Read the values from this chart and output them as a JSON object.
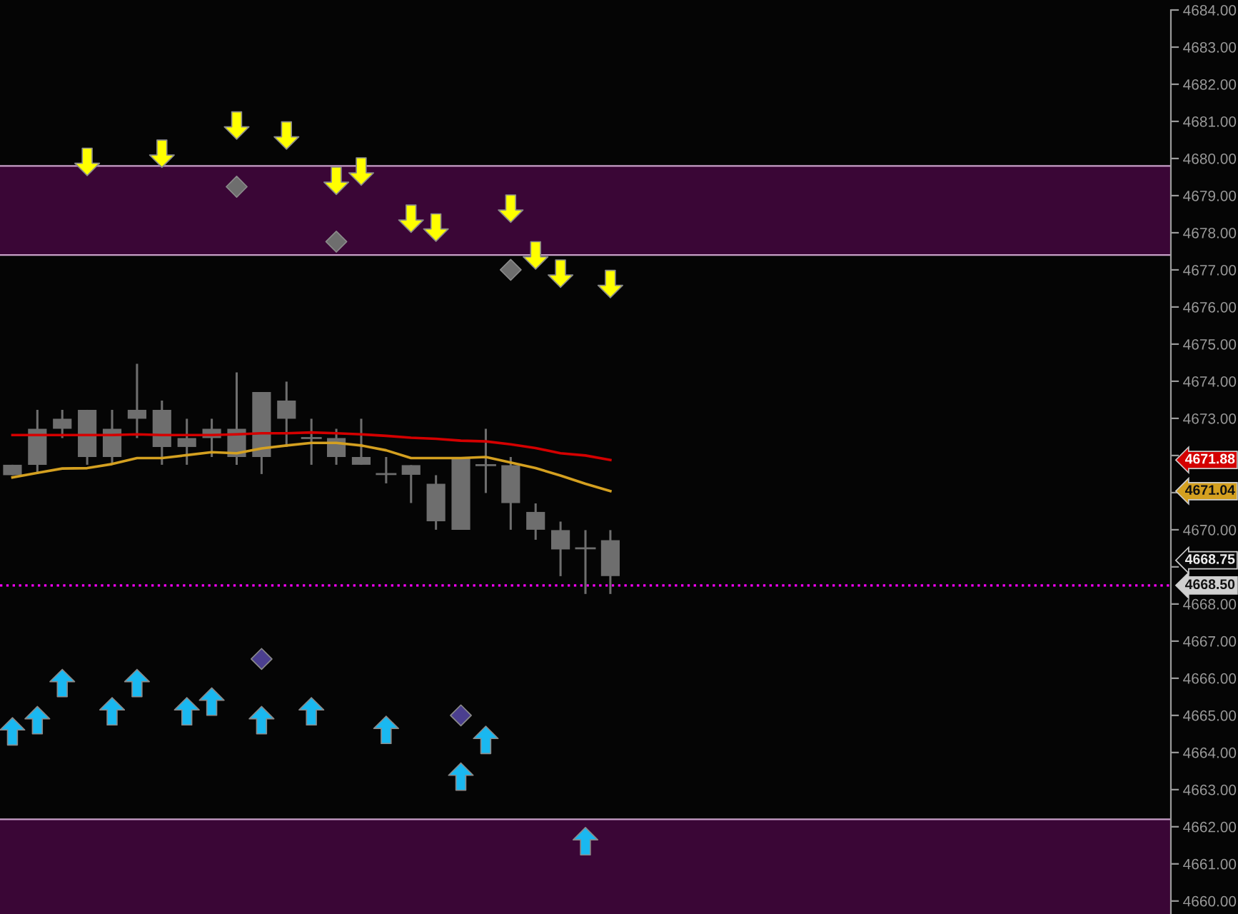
{
  "chart_data": {
    "type": "candlestick",
    "categories": [
      null,
      null,
      null,
      null,
      null,
      null,
      null,
      null,
      null,
      null,
      null,
      null,
      null,
      null,
      null,
      null,
      null,
      null,
      null,
      null,
      null,
      null,
      null,
      null,
      null,
      null,
      null,
      null,
      null,
      null,
      null,
      null,
      null,
      null,
      null,
      null,
      null,
      null,
      null,
      null,
      null,
      null,
      null,
      null,
      null,
      null,
      null
    ],
    "ohlc": [
      [
        4671.75,
        4671.75,
        4671.47,
        4671.47
      ],
      [
        4672.72,
        4673.23,
        4671.5,
        4671.75
      ],
      [
        4672.99,
        4673.23,
        4672.47,
        4672.72
      ],
      [
        4673.23,
        4673.23,
        4671.75,
        4671.96
      ],
      [
        4672.72,
        4673.23,
        4671.75,
        4671.96
      ],
      [
        4673.23,
        4674.47,
        4672.47,
        4672.99
      ],
      [
        4673.23,
        4673.48,
        4671.75,
        4672.23
      ],
      [
        4672.47,
        4672.99,
        4671.75,
        4672.23
      ],
      [
        4672.72,
        4672.99,
        4671.96,
        4672.47
      ],
      [
        4672.72,
        4674.24,
        4671.75,
        4671.96
      ],
      [
        4673.71,
        4673.71,
        4671.5,
        4671.96
      ],
      [
        4673.48,
        4673.99,
        4672.23,
        4672.99
      ],
      [
        4672.47,
        4672.99,
        4671.75,
        4672.47
      ],
      [
        4672.47,
        4672.72,
        4671.75,
        4671.96
      ],
      [
        4671.96,
        4672.99,
        4671.75,
        4671.75
      ],
      [
        4671.5,
        4671.96,
        4671.25,
        4671.5
      ],
      [
        4671.74,
        4671.74,
        4670.72,
        4671.48
      ],
      [
        4671.24,
        4671.47,
        4670.0,
        4670.23
      ],
      [
        4671.96,
        4671.96,
        4670.0,
        4670.0
      ],
      [
        4671.74,
        4672.72,
        4670.99,
        4671.74
      ],
      [
        4671.74,
        4671.96,
        4670.0,
        4670.72
      ],
      [
        4670.48,
        4670.71,
        4669.73,
        4670.0
      ],
      [
        4669.99,
        4670.22,
        4668.75,
        4669.47
      ],
      [
        4669.5,
        4669.99,
        4668.27,
        4669.5
      ],
      [
        4669.72,
        4669.99,
        4668.27,
        4668.75
      ],
      null,
      null,
      null,
      null,
      null,
      null,
      null,
      null,
      null,
      null,
      null,
      null,
      null,
      null,
      null,
      null,
      null,
      null,
      null,
      null,
      null,
      null
    ],
    "color": "#6e6e6e",
    "series": [
      {
        "type": "line",
        "color": "#d40000",
        "values": [
          4672.55,
          4672.55,
          4672.55,
          4672.55,
          4672.55,
          4672.57,
          4672.55,
          4672.55,
          4672.55,
          4672.57,
          4672.6,
          4672.6,
          4672.62,
          4672.6,
          4672.57,
          4672.53,
          4672.48,
          4672.45,
          4672.4,
          4672.38,
          4672.3,
          4672.2,
          4672.06,
          4672.0,
          4671.88,
          null,
          null,
          null,
          null,
          null,
          null,
          null,
          null,
          null,
          null,
          null,
          null,
          null,
          null,
          null,
          null,
          null,
          null,
          null,
          null,
          null,
          null
        ]
      },
      {
        "type": "line",
        "color": "#d4a020",
        "values": [
          4671.41,
          4671.53,
          4671.65,
          4671.66,
          4671.77,
          4671.93,
          4671.93,
          4672.01,
          4672.09,
          4672.06,
          4672.19,
          4672.27,
          4672.34,
          4672.34,
          4672.27,
          4672.14,
          4671.93,
          4671.93,
          4671.93,
          4671.96,
          4671.81,
          4671.66,
          4671.46,
          4671.24,
          4671.04,
          null,
          null,
          null,
          null,
          null,
          null,
          null,
          null,
          null,
          null,
          null,
          null,
          null,
          null,
          null,
          null,
          null,
          null,
          null,
          null,
          null,
          null
        ]
      },
      {
        "type": "scatter",
        "marker": "triangle",
        "color": "#ffff00",
        "values": [
          null,
          null,
          null,
          4679.91,
          null,
          null,
          4680.13,
          null,
          null,
          4680.89,
          null,
          4680.62,
          null,
          4679.4,
          4679.65,
          null,
          4678.38,
          4678.14,
          null,
          null,
          4678.65,
          4677.39,
          4676.9,
          null,
          4676.62,
          null,
          null,
          null,
          null,
          null,
          null,
          null,
          null,
          null,
          null,
          null,
          null,
          null,
          null,
          null,
          null,
          null,
          null,
          null,
          null,
          null,
          null
        ]
      },
      {
        "type": "scatter",
        "marker": "triangle",
        "color": "#1ab8f0",
        "values": [
          4664.57,
          4664.87,
          4665.87,
          null,
          4665.11,
          4665.87,
          null,
          4665.11,
          4665.37,
          null,
          4664.87,
          null,
          4665.11,
          null,
          null,
          4664.61,
          null,
          null,
          4663.35,
          4664.34,
          null,
          null,
          null,
          4661.61,
          null,
          null,
          null,
          null,
          null,
          null,
          null,
          null,
          null,
          null,
          null,
          null,
          null,
          null,
          null,
          null,
          null,
          null,
          null,
          null,
          null,
          null,
          null
        ]
      },
      {
        "type": "scatter",
        "marker": "diamond",
        "color": "#6e6e6e",
        "values": [
          null,
          null,
          null,
          null,
          null,
          null,
          null,
          null,
          null,
          4679.24,
          null,
          null,
          null,
          4677.76,
          null,
          null,
          null,
          null,
          null,
          null,
          4677.0,
          null,
          null,
          null,
          null,
          null,
          null,
          null,
          null,
          null,
          null,
          null,
          null,
          null,
          null,
          null,
          null,
          null,
          null,
          null,
          null,
          null,
          null,
          null,
          null,
          null,
          null
        ]
      },
      {
        "type": "scatter",
        "marker": "diamond",
        "color": "#4b3f8f",
        "values": [
          null,
          null,
          null,
          null,
          null,
          null,
          null,
          null,
          null,
          null,
          4666.52,
          null,
          null,
          null,
          null,
          null,
          null,
          null,
          4665.0,
          null,
          null,
          null,
          null,
          null,
          null,
          null,
          null,
          null,
          null,
          null,
          null,
          null,
          null,
          null,
          null,
          null,
          null,
          null,
          null,
          null,
          null,
          null,
          null,
          null,
          null,
          null,
          null
        ]
      }
    ],
    "ylim": [
      4659.65,
      4684.0
    ],
    "yticks": [
      {
        "value": 4660,
        "label": "4660.00"
      },
      {
        "value": 4661,
        "label": "4661.00"
      },
      {
        "value": 4662,
        "label": "4662.00"
      },
      {
        "value": 4663,
        "label": "4663.00"
      },
      {
        "value": 4664,
        "label": "4664.00"
      },
      {
        "value": 4665,
        "label": "4665.00"
      },
      {
        "value": 4666,
        "label": "4666.00"
      },
      {
        "value": 4667,
        "label": "4667.00"
      },
      {
        "value": 4668,
        "label": "4668.00"
      },
      {
        "value": 4669,
        "label": null
      },
      {
        "value": 4670,
        "label": "4670.00"
      },
      {
        "value": 4671,
        "label": null
      },
      {
        "value": 4672,
        "label": null
      },
      {
        "value": 4673,
        "label": "4673.00"
      },
      {
        "value": 4674,
        "label": "4674.00"
      },
      {
        "value": 4675,
        "label": "4675.00"
      },
      {
        "value": 4676,
        "label": "4676.00"
      },
      {
        "value": 4677,
        "label": "4677.00"
      },
      {
        "value": 4678,
        "label": "4678.00"
      },
      {
        "value": 4679,
        "label": "4679.00"
      },
      {
        "value": 4680,
        "label": "4680.00"
      },
      {
        "value": 4681,
        "label": "4681.00"
      },
      {
        "value": 4682,
        "label": "4682.00"
      },
      {
        "value": 4683,
        "label": "4683.00"
      },
      {
        "value": 4684,
        "label": "4684.00"
      }
    ],
    "tick_labels": "y",
    "grid": false,
    "bands": [
      {
        "axis": "y",
        "from": 4677.4,
        "to": 4679.8,
        "color": "#3a0636"
      },
      {
        "axis": "y",
        "from": 4659.65,
        "to": 4662.2,
        "color": "#3a0636"
      }
    ],
    "ref_lines": [
      {
        "axis": "y",
        "value": 4668.5,
        "label": "4668.50",
        "color": "#ff00ff",
        "line_style": "dotted"
      }
    ],
    "annotations": [
      "4671.88",
      "4671.04",
      "4668.75"
    ]
  }
}
